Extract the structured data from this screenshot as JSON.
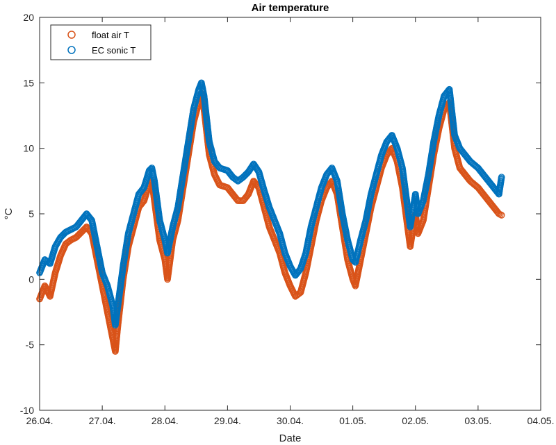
{
  "chart_data": {
    "type": "scatter",
    "title": "Air temperature",
    "xlabel": "Date",
    "ylabel": "°C",
    "xlim": [
      "2000-04-26T00:00",
      "2000-05-04T00:00"
    ],
    "ylim": [
      -10,
      20
    ],
    "x_ticks": [
      "26.04.",
      "27.04.",
      "28.04.",
      "29.04.",
      "30.04.",
      "01.05.",
      "02.05.",
      "03.05.",
      "04.05."
    ],
    "y_ticks": [
      -10,
      -5,
      0,
      5,
      10,
      15,
      20
    ],
    "grid": false,
    "legend_position": "top-left",
    "series": [
      {
        "name": "float air T",
        "color": "#D95319",
        "marker": "open-circle",
        "points": [
          [
            "2000-04-26T00:00",
            -1.5
          ],
          [
            "2000-04-26T02:00",
            -0.5
          ],
          [
            "2000-04-26T04:00",
            -1.3
          ],
          [
            "2000-04-26T06:00",
            0.5
          ],
          [
            "2000-04-26T08:00",
            1.8
          ],
          [
            "2000-04-26T10:00",
            2.7
          ],
          [
            "2000-04-26T12:00",
            3.0
          ],
          [
            "2000-04-26T14:00",
            3.2
          ],
          [
            "2000-04-26T16:00",
            3.6
          ],
          [
            "2000-04-26T18:00",
            4.0
          ],
          [
            "2000-04-26T20:00",
            3.5
          ],
          [
            "2000-04-26T22:00",
            1.5
          ],
          [
            "2000-04-27T00:00",
            -0.5
          ],
          [
            "2000-04-27T02:00",
            -2.5
          ],
          [
            "2000-04-27T04:00",
            -4.5
          ],
          [
            "2000-04-27T05:00",
            -5.5
          ],
          [
            "2000-04-27T06:00",
            -3.5
          ],
          [
            "2000-04-27T08:00",
            0.0
          ],
          [
            "2000-04-27T10:00",
            2.5
          ],
          [
            "2000-04-27T12:00",
            4.0
          ],
          [
            "2000-04-27T14:00",
            5.5
          ],
          [
            "2000-04-27T16:00",
            6.0
          ],
          [
            "2000-04-27T18:00",
            7.3
          ],
          [
            "2000-04-27T19:00",
            7.5
          ],
          [
            "2000-04-27T20:00",
            6.0
          ],
          [
            "2000-04-27T22:00",
            3.0
          ],
          [
            "2000-04-28T00:00",
            1.5
          ],
          [
            "2000-04-28T01:00",
            0.0
          ],
          [
            "2000-04-28T03:00",
            3.0
          ],
          [
            "2000-04-28T05:00",
            4.5
          ],
          [
            "2000-04-28T07:00",
            7.0
          ],
          [
            "2000-04-28T09:00",
            9.5
          ],
          [
            "2000-04-28T11:00",
            12.0
          ],
          [
            "2000-04-28T13:00",
            13.5
          ],
          [
            "2000-04-28T14:00",
            14.2
          ],
          [
            "2000-04-28T15:00",
            13.0
          ],
          [
            "2000-04-28T17:00",
            9.5
          ],
          [
            "2000-04-28T19:00",
            8.0
          ],
          [
            "2000-04-28T21:00",
            7.2
          ],
          [
            "2000-04-29T00:00",
            7.0
          ],
          [
            "2000-04-29T02:00",
            6.5
          ],
          [
            "2000-04-29T04:00",
            6.0
          ],
          [
            "2000-04-29T06:00",
            6.0
          ],
          [
            "2000-04-29T08:00",
            6.5
          ],
          [
            "2000-04-29T10:00",
            7.5
          ],
          [
            "2000-04-29T12:00",
            7.0
          ],
          [
            "2000-04-29T14:00",
            5.5
          ],
          [
            "2000-04-29T16:00",
            4.0
          ],
          [
            "2000-04-29T18:00",
            3.0
          ],
          [
            "2000-04-29T20:00",
            2.0
          ],
          [
            "2000-04-29T22:00",
            0.5
          ],
          [
            "2000-04-30T00:00",
            -0.5
          ],
          [
            "2000-04-30T02:00",
            -1.3
          ],
          [
            "2000-04-30T04:00",
            -1.0
          ],
          [
            "2000-04-30T06:00",
            0.5
          ],
          [
            "2000-04-30T08:00",
            2.5
          ],
          [
            "2000-04-30T10:00",
            4.5
          ],
          [
            "2000-04-30T12:00",
            6.0
          ],
          [
            "2000-04-30T14:00",
            7.0
          ],
          [
            "2000-04-30T16:00",
            7.5
          ],
          [
            "2000-04-30T18:00",
            6.5
          ],
          [
            "2000-04-30T20:00",
            4.0
          ],
          [
            "2000-04-30T22:00",
            1.5
          ],
          [
            "2000-05-01T00:00",
            0.0
          ],
          [
            "2000-05-01T01:00",
            -0.5
          ],
          [
            "2000-05-01T03:00",
            1.5
          ],
          [
            "2000-05-01T05:00",
            3.5
          ],
          [
            "2000-05-01T07:00",
            5.5
          ],
          [
            "2000-05-01T09:00",
            7.0
          ],
          [
            "2000-05-01T11:00",
            8.5
          ],
          [
            "2000-05-01T13:00",
            9.5
          ],
          [
            "2000-05-01T15:00",
            10.0
          ],
          [
            "2000-05-01T17:00",
            9.0
          ],
          [
            "2000-05-01T19:00",
            7.0
          ],
          [
            "2000-05-01T21:00",
            4.0
          ],
          [
            "2000-05-01T22:00",
            2.5
          ],
          [
            "2000-05-02T00:00",
            5.0
          ],
          [
            "2000-05-02T01:00",
            3.5
          ],
          [
            "2000-05-02T03:00",
            4.5
          ],
          [
            "2000-05-02T05:00",
            7.0
          ],
          [
            "2000-05-02T07:00",
            9.5
          ],
          [
            "2000-05-02T09:00",
            11.5
          ],
          [
            "2000-05-02T11:00",
            13.0
          ],
          [
            "2000-05-02T13:00",
            13.5
          ],
          [
            "2000-05-02T15:00",
            10.0
          ],
          [
            "2000-05-02T17:00",
            8.5
          ],
          [
            "2000-05-02T19:00",
            8.0
          ],
          [
            "2000-05-02T21:00",
            7.5
          ],
          [
            "2000-05-03T00:00",
            7.0
          ],
          [
            "2000-05-03T02:00",
            6.5
          ],
          [
            "2000-05-03T04:00",
            6.0
          ],
          [
            "2000-05-03T06:00",
            5.5
          ],
          [
            "2000-05-03T08:00",
            5.0
          ],
          [
            "2000-05-03T09:00",
            4.9
          ]
        ]
      },
      {
        "name": "EC sonic T",
        "color": "#0072BD",
        "marker": "open-circle",
        "points": [
          [
            "2000-04-26T00:00",
            0.5
          ],
          [
            "2000-04-26T02:00",
            1.5
          ],
          [
            "2000-04-26T04:00",
            1.2
          ],
          [
            "2000-04-26T06:00",
            2.5
          ],
          [
            "2000-04-26T08:00",
            3.2
          ],
          [
            "2000-04-26T10:00",
            3.6
          ],
          [
            "2000-04-26T12:00",
            3.8
          ],
          [
            "2000-04-26T14:00",
            4.0
          ],
          [
            "2000-04-26T16:00",
            4.5
          ],
          [
            "2000-04-26T18:00",
            5.0
          ],
          [
            "2000-04-26T20:00",
            4.5
          ],
          [
            "2000-04-26T22:00",
            2.5
          ],
          [
            "2000-04-27T00:00",
            0.5
          ],
          [
            "2000-04-27T02:00",
            -0.5
          ],
          [
            "2000-04-27T04:00",
            -2.0
          ],
          [
            "2000-04-27T05:00",
            -3.5
          ],
          [
            "2000-04-27T06:00",
            -2.0
          ],
          [
            "2000-04-27T08:00",
            1.0
          ],
          [
            "2000-04-27T10:00",
            3.5
          ],
          [
            "2000-04-27T12:00",
            5.0
          ],
          [
            "2000-04-27T14:00",
            6.5
          ],
          [
            "2000-04-27T16:00",
            7.0
          ],
          [
            "2000-04-27T18:00",
            8.3
          ],
          [
            "2000-04-27T19:00",
            8.5
          ],
          [
            "2000-04-27T20:00",
            7.5
          ],
          [
            "2000-04-27T22:00",
            4.5
          ],
          [
            "2000-04-28T00:00",
            3.0
          ],
          [
            "2000-04-28T01:00",
            2.0
          ],
          [
            "2000-04-28T03:00",
            4.0
          ],
          [
            "2000-04-28T05:00",
            5.5
          ],
          [
            "2000-04-28T07:00",
            8.0
          ],
          [
            "2000-04-28T09:00",
            10.5
          ],
          [
            "2000-04-28T11:00",
            13.0
          ],
          [
            "2000-04-28T13:00",
            14.5
          ],
          [
            "2000-04-28T14:00",
            15.0
          ],
          [
            "2000-04-28T15:00",
            14.0
          ],
          [
            "2000-04-28T17:00",
            10.5
          ],
          [
            "2000-04-28T19:00",
            9.0
          ],
          [
            "2000-04-28T21:00",
            8.5
          ],
          [
            "2000-04-29T00:00",
            8.3
          ],
          [
            "2000-04-29T02:00",
            7.8
          ],
          [
            "2000-04-29T04:00",
            7.5
          ],
          [
            "2000-04-29T06:00",
            7.8
          ],
          [
            "2000-04-29T08:00",
            8.2
          ],
          [
            "2000-04-29T10:00",
            8.8
          ],
          [
            "2000-04-29T12:00",
            8.2
          ],
          [
            "2000-04-29T14:00",
            6.8
          ],
          [
            "2000-04-29T16:00",
            5.5
          ],
          [
            "2000-04-29T18:00",
            4.5
          ],
          [
            "2000-04-29T20:00",
            3.5
          ],
          [
            "2000-04-29T22:00",
            2.0
          ],
          [
            "2000-04-30T00:00",
            1.0
          ],
          [
            "2000-04-30T02:00",
            0.3
          ],
          [
            "2000-04-30T04:00",
            0.8
          ],
          [
            "2000-04-30T06:00",
            2.0
          ],
          [
            "2000-04-30T08:00",
            4.0
          ],
          [
            "2000-04-30T10:00",
            5.5
          ],
          [
            "2000-04-30T12:00",
            7.0
          ],
          [
            "2000-04-30T14:00",
            8.0
          ],
          [
            "2000-04-30T16:00",
            8.5
          ],
          [
            "2000-04-30T18:00",
            7.5
          ],
          [
            "2000-04-30T20:00",
            5.0
          ],
          [
            "2000-04-30T22:00",
            3.0
          ],
          [
            "2000-05-01T00:00",
            1.5
          ],
          [
            "2000-05-01T01:00",
            1.3
          ],
          [
            "2000-05-01T03:00",
            3.0
          ],
          [
            "2000-05-01T05:00",
            4.5
          ],
          [
            "2000-05-01T07:00",
            6.5
          ],
          [
            "2000-05-01T09:00",
            8.0
          ],
          [
            "2000-05-01T11:00",
            9.5
          ],
          [
            "2000-05-01T13:00",
            10.5
          ],
          [
            "2000-05-01T15:00",
            11.0
          ],
          [
            "2000-05-01T17:00",
            10.0
          ],
          [
            "2000-05-01T19:00",
            8.5
          ],
          [
            "2000-05-01T21:00",
            5.5
          ],
          [
            "2000-05-01T22:00",
            4.0
          ],
          [
            "2000-05-02T00:00",
            6.5
          ],
          [
            "2000-05-02T01:00",
            5.0
          ],
          [
            "2000-05-02T03:00",
            6.0
          ],
          [
            "2000-05-02T05:00",
            8.0
          ],
          [
            "2000-05-02T07:00",
            10.5
          ],
          [
            "2000-05-02T09:00",
            12.5
          ],
          [
            "2000-05-02T11:00",
            14.0
          ],
          [
            "2000-05-02T13:00",
            14.5
          ],
          [
            "2000-05-02T15:00",
            11.0
          ],
          [
            "2000-05-02T17:00",
            10.0
          ],
          [
            "2000-05-02T19:00",
            9.5
          ],
          [
            "2000-05-02T21:00",
            9.0
          ],
          [
            "2000-05-03T00:00",
            8.5
          ],
          [
            "2000-05-03T02:00",
            8.0
          ],
          [
            "2000-05-03T04:00",
            7.5
          ],
          [
            "2000-05-03T06:00",
            7.0
          ],
          [
            "2000-05-03T08:00",
            6.5
          ],
          [
            "2000-05-03T09:00",
            7.8
          ]
        ]
      }
    ]
  }
}
